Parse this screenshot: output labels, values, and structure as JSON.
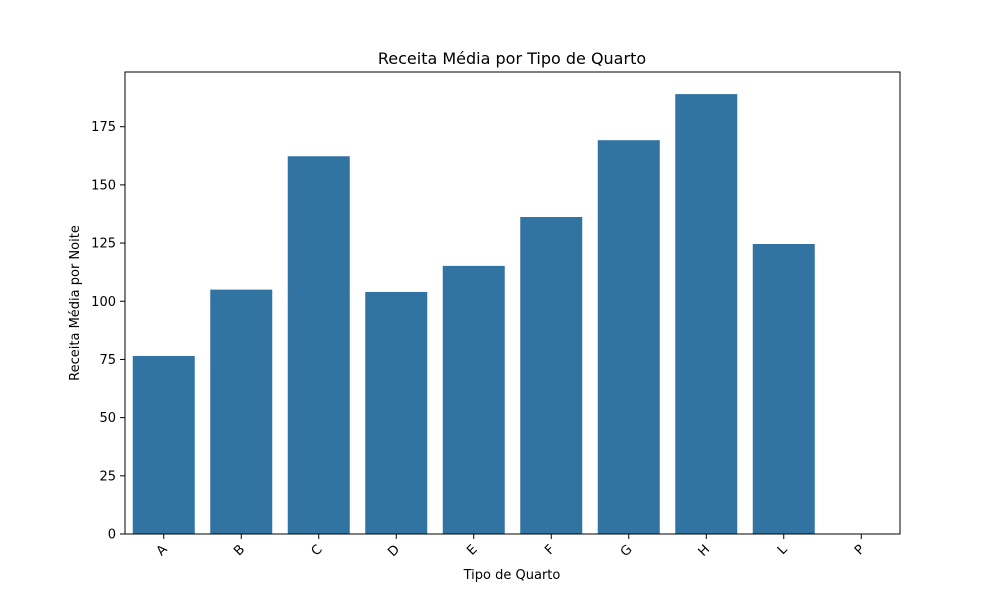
{
  "chart_data": {
    "type": "bar",
    "title": "Receita Média por Tipo de Quarto",
    "xlabel": "Tipo de Quarto",
    "ylabel": "Receita Média por Noite",
    "categories": [
      "A",
      "B",
      "C",
      "D",
      "E",
      "F",
      "G",
      "H",
      "L",
      "P"
    ],
    "values": [
      76.5,
      105,
      162.3,
      104,
      115.2,
      136.2,
      169.2,
      189,
      124.6,
      0
    ],
    "ylim": [
      0,
      198.5
    ],
    "yticks": [
      0,
      25,
      50,
      75,
      100,
      125,
      150,
      175
    ],
    "grid": false,
    "legend": "none",
    "bar_color": "#3274a1",
    "x_tick_rotation": "45deg"
  }
}
